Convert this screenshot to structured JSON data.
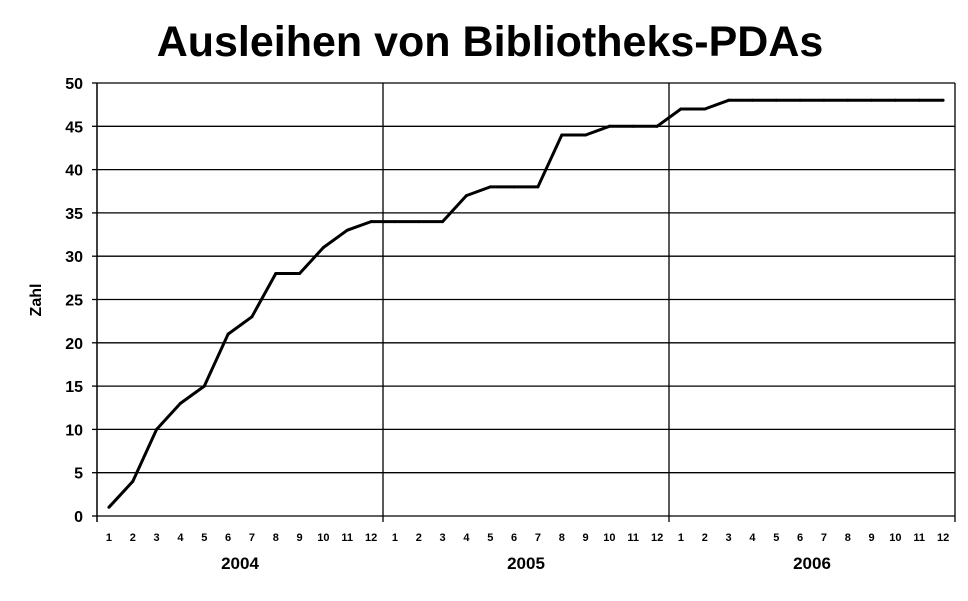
{
  "chart_data": {
    "type": "line",
    "title": "Ausleihen von Bibliotheks-PDAs",
    "xlabel": "",
    "ylabel": "Zahl",
    "ylim": [
      0,
      50
    ],
    "yticks": [
      "0",
      "5",
      "10",
      "15",
      "20",
      "25",
      "30",
      "35",
      "40",
      "45",
      "50"
    ],
    "grid": true,
    "legend": "none",
    "line_color": "#000000",
    "groups": [
      {
        "year": "2004",
        "months": [
          "1",
          "2",
          "3",
          "4",
          "5",
          "6",
          "7",
          "8",
          "9",
          "10",
          "11",
          "12"
        ]
      },
      {
        "year": "2005",
        "months": [
          "1",
          "2",
          "3",
          "4",
          "5",
          "6",
          "7",
          "8",
          "9",
          "10",
          "11",
          "12"
        ]
      },
      {
        "year": "2006",
        "months": [
          "1",
          "2",
          "3",
          "4",
          "5",
          "6",
          "7",
          "8",
          "9",
          "10",
          "11",
          "12"
        ]
      }
    ],
    "values": [
      1,
      4,
      10,
      13,
      15,
      21,
      23,
      28,
      28,
      31,
      33,
      34,
      34,
      34,
      34,
      37,
      38,
      38,
      38,
      44,
      44,
      45,
      45,
      45,
      47,
      47,
      48,
      48,
      48,
      48,
      48,
      48,
      48,
      48,
      48,
      48
    ]
  }
}
